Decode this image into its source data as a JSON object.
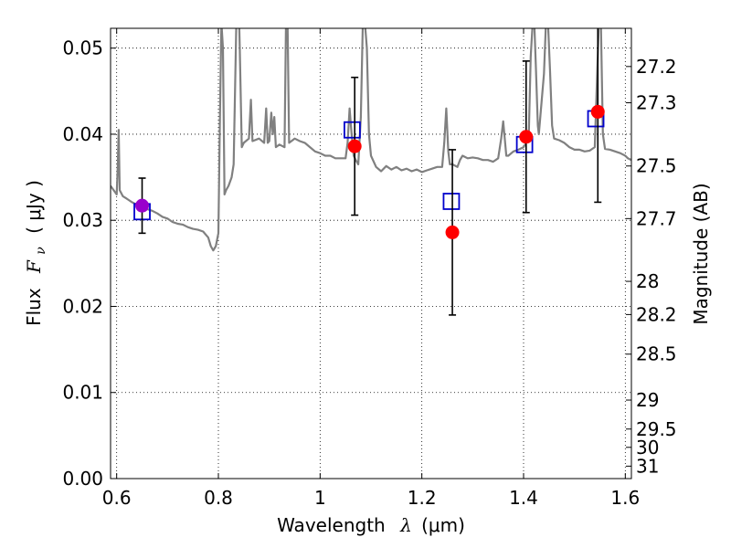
{
  "chart_data": {
    "type": "scatter",
    "xlabel": {
      "prefix": "Wavelength",
      "symbol": "λ",
      "unit": "(μm)"
    },
    "ylabel": {
      "prefix": "Flux",
      "symbol": "F",
      "sub": "ν",
      "unit": "( μJy )"
    },
    "ylabel_right": "Magnitude (AB)",
    "xlim": [
      0.588,
      1.612
    ],
    "ylim": [
      0.0,
      0.0523
    ],
    "grid": true,
    "x_ticks": [
      0.6,
      0.8,
      1.0,
      1.2,
      1.4,
      1.6
    ],
    "x_tick_labels": [
      "0.6",
      "0.8",
      "1",
      "1.2",
      "1.4",
      "1.6"
    ],
    "y_ticks": [
      0.0,
      0.01,
      0.02,
      0.03,
      0.04,
      0.05
    ],
    "y_tick_labels": [
      "0.00",
      "0.01",
      "0.02",
      "0.03",
      "0.04",
      "0.05"
    ],
    "mag_ticks": [
      27.2,
      27.3,
      27.5,
      27.7,
      28,
      28.2,
      28.5,
      29,
      29.5,
      30,
      31
    ],
    "mag_tick_labels": [
      "27.2",
      "27.3",
      "27.5",
      "27.7",
      "28",
      "28.2",
      "28.5",
      "29",
      "29.5",
      "30",
      "31"
    ],
    "colors": {
      "sed_line": "#808080",
      "observed": "#ff0000",
      "observed_optical": "#9900cc",
      "model": "#0000cc",
      "errorbar": "#000000"
    },
    "series": [
      {
        "kind": "sed_model_spectrum",
        "points": [
          [
            0.588,
            0.034
          ],
          [
            0.6,
            0.033
          ],
          [
            0.602,
            0.036
          ],
          [
            0.604,
            0.0405
          ],
          [
            0.606,
            0.0335
          ],
          [
            0.612,
            0.0328
          ],
          [
            0.62,
            0.0325
          ],
          [
            0.63,
            0.0321
          ],
          [
            0.64,
            0.0318
          ],
          [
            0.65,
            0.0316
          ],
          [
            0.66,
            0.0313
          ],
          [
            0.67,
            0.0311
          ],
          [
            0.68,
            0.0308
          ],
          [
            0.69,
            0.0304
          ],
          [
            0.7,
            0.0302
          ],
          [
            0.71,
            0.0298
          ],
          [
            0.72,
            0.0296
          ],
          [
            0.73,
            0.0295
          ],
          [
            0.74,
            0.0292
          ],
          [
            0.75,
            0.029
          ],
          [
            0.76,
            0.0289
          ],
          [
            0.77,
            0.0287
          ],
          [
            0.78,
            0.028
          ],
          [
            0.785,
            0.027
          ],
          [
            0.79,
            0.0265
          ],
          [
            0.795,
            0.027
          ],
          [
            0.8,
            0.0285
          ],
          [
            0.803,
            0.042
          ],
          [
            0.806,
            0.053
          ],
          [
            0.809,
            0.05
          ],
          [
            0.812,
            0.033
          ],
          [
            0.815,
            0.0335
          ],
          [
            0.82,
            0.034
          ],
          [
            0.826,
            0.035
          ],
          [
            0.83,
            0.0365
          ],
          [
            0.836,
            0.055
          ],
          [
            0.84,
            0.055
          ],
          [
            0.842,
            0.05
          ],
          [
            0.846,
            0.0385
          ],
          [
            0.85,
            0.039
          ],
          [
            0.86,
            0.0395
          ],
          [
            0.864,
            0.044
          ],
          [
            0.867,
            0.0392
          ],
          [
            0.88,
            0.0395
          ],
          [
            0.89,
            0.039
          ],
          [
            0.894,
            0.043
          ],
          [
            0.897,
            0.039
          ],
          [
            0.9,
            0.0392
          ],
          [
            0.904,
            0.0425
          ],
          [
            0.907,
            0.04
          ],
          [
            0.91,
            0.042
          ],
          [
            0.913,
            0.0385
          ],
          [
            0.92,
            0.0388
          ],
          [
            0.93,
            0.0385
          ],
          [
            0.933,
            0.053
          ],
          [
            0.936,
            0.053
          ],
          [
            0.939,
            0.039
          ],
          [
            0.95,
            0.0395
          ],
          [
            0.96,
            0.0392
          ],
          [
            0.97,
            0.039
          ],
          [
            0.98,
            0.0385
          ],
          [
            0.99,
            0.038
          ],
          [
            1.0,
            0.0378
          ],
          [
            1.01,
            0.0375
          ],
          [
            1.02,
            0.0375
          ],
          [
            1.03,
            0.0372
          ],
          [
            1.04,
            0.0372
          ],
          [
            1.05,
            0.0372
          ],
          [
            1.054,
            0.039
          ],
          [
            1.058,
            0.043
          ],
          [
            1.062,
            0.04
          ],
          [
            1.066,
            0.0375
          ],
          [
            1.07,
            0.037
          ],
          [
            1.075,
            0.0365
          ],
          [
            1.08,
            0.042
          ],
          [
            1.084,
            0.053
          ],
          [
            1.088,
            0.053
          ],
          [
            1.092,
            0.05
          ],
          [
            1.096,
            0.04
          ],
          [
            1.1,
            0.0375
          ],
          [
            1.11,
            0.0362
          ],
          [
            1.12,
            0.0357
          ],
          [
            1.13,
            0.0363
          ],
          [
            1.14,
            0.0359
          ],
          [
            1.15,
            0.0362
          ],
          [
            1.16,
            0.0358
          ],
          [
            1.17,
            0.036
          ],
          [
            1.18,
            0.0357
          ],
          [
            1.19,
            0.0359
          ],
          [
            1.2,
            0.0356
          ],
          [
            1.21,
            0.0358
          ],
          [
            1.22,
            0.036
          ],
          [
            1.23,
            0.0362
          ],
          [
            1.24,
            0.0362
          ],
          [
            1.244,
            0.039
          ],
          [
            1.248,
            0.043
          ],
          [
            1.252,
            0.038
          ],
          [
            1.255,
            0.0365
          ],
          [
            1.26,
            0.0365
          ],
          [
            1.27,
            0.0362
          ],
          [
            1.275,
            0.037
          ],
          [
            1.28,
            0.0375
          ],
          [
            1.29,
            0.0372
          ],
          [
            1.3,
            0.0373
          ],
          [
            1.31,
            0.0372
          ],
          [
            1.32,
            0.037
          ],
          [
            1.33,
            0.037
          ],
          [
            1.34,
            0.0368
          ],
          [
            1.35,
            0.0372
          ],
          [
            1.356,
            0.0395
          ],
          [
            1.36,
            0.0415
          ],
          [
            1.363,
            0.0395
          ],
          [
            1.366,
            0.0375
          ],
          [
            1.37,
            0.0375
          ],
          [
            1.38,
            0.038
          ],
          [
            1.39,
            0.0382
          ],
          [
            1.4,
            0.0385
          ],
          [
            1.41,
            0.0395
          ],
          [
            1.414,
            0.049
          ],
          [
            1.418,
            0.053
          ],
          [
            1.421,
            0.053
          ],
          [
            1.424,
            0.048
          ],
          [
            1.428,
            0.041
          ],
          [
            1.43,
            0.04
          ],
          [
            1.44,
            0.047
          ],
          [
            1.444,
            0.053
          ],
          [
            1.448,
            0.053
          ],
          [
            1.452,
            0.0475
          ],
          [
            1.456,
            0.041
          ],
          [
            1.46,
            0.0395
          ],
          [
            1.47,
            0.0393
          ],
          [
            1.48,
            0.039
          ],
          [
            1.49,
            0.0385
          ],
          [
            1.5,
            0.0382
          ],
          [
            1.51,
            0.0382
          ],
          [
            1.52,
            0.038
          ],
          [
            1.53,
            0.0381
          ],
          [
            1.54,
            0.0385
          ],
          [
            1.548,
            0.053
          ],
          [
            1.552,
            0.053
          ],
          [
            1.556,
            0.04
          ],
          [
            1.56,
            0.0383
          ],
          [
            1.57,
            0.0382
          ],
          [
            1.58,
            0.038
          ],
          [
            1.59,
            0.0378
          ],
          [
            1.6,
            0.0375
          ],
          [
            1.605,
            0.0372
          ],
          [
            1.612,
            0.037
          ]
        ]
      },
      {
        "kind": "observed_photometry",
        "points": [
          {
            "x": 0.65,
            "y": 0.0317,
            "err": 0.0032,
            "color": "observed_optical"
          },
          {
            "x": 1.068,
            "y": 0.0386,
            "err": 0.008,
            "color": "observed"
          },
          {
            "x": 1.26,
            "y": 0.0286,
            "err": 0.0096,
            "color": "observed"
          },
          {
            "x": 1.405,
            "y": 0.0397,
            "err": 0.0088,
            "color": "observed"
          },
          {
            "x": 1.546,
            "y": 0.0426,
            "err": 0.0105,
            "color": "observed"
          }
        ]
      },
      {
        "kind": "model_photometry",
        "points": [
          {
            "x": 0.65,
            "y": 0.031
          },
          {
            "x": 1.063,
            "y": 0.0405
          },
          {
            "x": 1.258,
            "y": 0.0322
          },
          {
            "x": 1.402,
            "y": 0.0388
          },
          {
            "x": 1.542,
            "y": 0.0418
          }
        ]
      }
    ]
  }
}
